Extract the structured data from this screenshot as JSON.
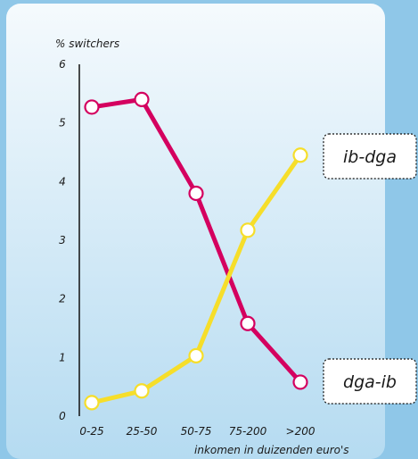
{
  "chart_data": {
    "type": "line",
    "ylabel": "% switchers",
    "xlabel": "inkomen in duizenden euro's",
    "categories": [
      "0-25",
      "25-50",
      "50-75",
      "75-200",
      ">200"
    ],
    "yticks": [
      "0",
      "1",
      "2",
      "3",
      "4",
      "5",
      "6"
    ],
    "ylim": [
      0,
      6
    ],
    "grid": false,
    "series": [
      {
        "name": "dga-ib",
        "color": "#d4005f",
        "values": [
          5.27,
          5.4,
          3.8,
          1.58,
          0.58
        ]
      },
      {
        "name": "ib-dga",
        "color": "#f6de2a",
        "values": [
          0.23,
          0.43,
          1.03,
          3.17,
          4.45
        ]
      }
    ]
  }
}
